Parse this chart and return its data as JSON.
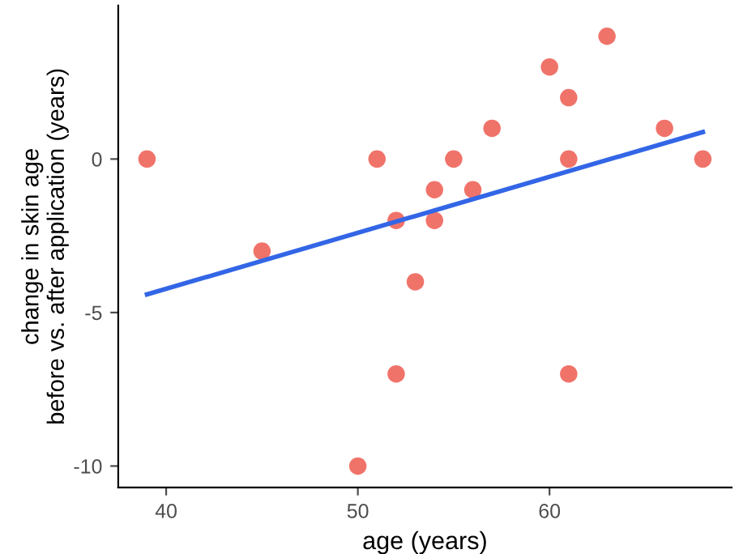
{
  "chart_data": {
    "type": "scatter",
    "xlabel": "age (years)",
    "ylabel": "change in skin age\nbefore vs. after application (years)",
    "xlim": [
      37.5,
      69.5
    ],
    "ylim": [
      -10.7,
      5.0
    ],
    "xticks": [
      40,
      50,
      60
    ],
    "yticks": [
      -10,
      -5,
      0
    ],
    "grid": false,
    "legend": false,
    "series": [
      {
        "marker": "circle",
        "color": "#f0736a",
        "x": [
          39,
          45,
          50,
          51,
          52,
          52,
          53,
          54,
          54,
          55,
          56,
          57,
          60,
          61,
          61,
          61,
          63,
          66,
          68
        ],
        "values": [
          0,
          -3,
          -10,
          0,
          -2,
          -7,
          -4,
          -1,
          -2,
          0,
          -1,
          1,
          3,
          2,
          0,
          -7,
          4,
          1,
          0
        ]
      },
      {
        "type": "line",
        "color": "#3366e6",
        "x": [
          39,
          68
        ],
        "values": [
          -4.41,
          0.88
        ]
      }
    ]
  }
}
